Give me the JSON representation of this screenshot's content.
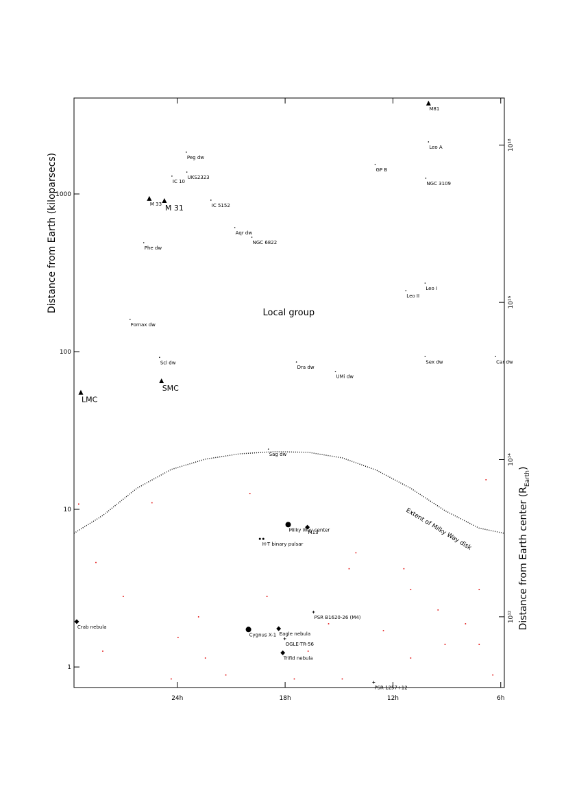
{
  "chart_data": {
    "type": "scatter",
    "y_label": "Distance from Earth (kiloparsecs)",
    "y2_label": {
      "text": "Distance from Earth center (R",
      "sub": "Earth",
      "end": ")"
    },
    "xlim": [
      29.75,
      5.8
    ],
    "xticks": [
      {
        "value": 24,
        "label": "24h"
      },
      {
        "value": 18,
        "label": "18h"
      },
      {
        "value": 12,
        "label": "12h"
      },
      {
        "value": 6,
        "label": "6h"
      }
    ],
    "ylim": [
      0.741,
      4060
    ],
    "yticks": [
      1,
      10,
      100,
      1000
    ],
    "log_y": true,
    "y2lim": [
      126000000000.0,
      3.98e+18
    ],
    "y2ticks": [
      {
        "value": 1000000000000.0,
        "label": "10¹²"
      },
      {
        "value": 100000000000000.0,
        "label": "10¹⁴"
      },
      {
        "value": 1e+16,
        "label": "10¹⁶"
      },
      {
        "value": 1e+18,
        "label": "10¹⁸"
      }
    ],
    "log_y2": true,
    "annotations": [
      {
        "text": "Local group",
        "x": 17.8,
        "y": 170
      }
    ],
    "points": [
      {
        "label": "M81",
        "x": 10.02,
        "y": 3750,
        "marker": "triangle",
        "size": "small"
      },
      {
        "label": "M 33",
        "x": 25.56,
        "y": 933,
        "marker": "triangle",
        "size": "small"
      },
      {
        "label": "M 31",
        "x": 24.72,
        "y": 905,
        "marker": "triangle",
        "size": "large"
      },
      {
        "label": "SMC",
        "x": 24.88,
        "y": 65,
        "marker": "triangle",
        "size": "large"
      },
      {
        "label": "LMC",
        "x": 29.37,
        "y": 55,
        "marker": "triangle",
        "size": "large"
      },
      {
        "label": "Peg dw",
        "x": 23.5,
        "y": 1842,
        "marker": "dot",
        "size": "small"
      },
      {
        "label": "Leo A",
        "x": 10.02,
        "y": 2140,
        "marker": "dot",
        "size": "small"
      },
      {
        "label": "GP B",
        "x": 12.99,
        "y": 1538,
        "marker": "dot",
        "size": "small"
      },
      {
        "label": "UKS2323",
        "x": 23.47,
        "y": 1377,
        "marker": "dot",
        "size": "small"
      },
      {
        "label": "IC 10",
        "x": 24.3,
        "y": 1298,
        "marker": "dot",
        "size": "small"
      },
      {
        "label": "NGC 3109",
        "x": 10.17,
        "y": 1259,
        "marker": "dot",
        "size": "small"
      },
      {
        "label": "IC 5152",
        "x": 22.13,
        "y": 914,
        "marker": "dot",
        "size": "small"
      },
      {
        "label": "Aqr dw",
        "x": 20.8,
        "y": 612,
        "marker": "dot",
        "size": "small"
      },
      {
        "label": "NGC 6822",
        "x": 19.85,
        "y": 532,
        "marker": "dot",
        "size": "small"
      },
      {
        "label": "Phe dw",
        "x": 25.87,
        "y": 491,
        "marker": "dot",
        "size": "small"
      },
      {
        "label": "Leo I",
        "x": 10.21,
        "y": 272,
        "marker": "dot",
        "size": "small"
      },
      {
        "label": "Leo II",
        "x": 11.28,
        "y": 244,
        "marker": "dot",
        "size": "small"
      },
      {
        "label": "Fornax dw",
        "x": 26.63,
        "y": 160,
        "marker": "dot",
        "size": "small"
      },
      {
        "label": "Scl dw",
        "x": 24.99,
        "y": 92,
        "marker": "dot",
        "size": "small"
      },
      {
        "label": "Dra dw",
        "x": 17.37,
        "y": 86,
        "marker": "dot",
        "size": "small"
      },
      {
        "label": "Sex dw",
        "x": 10.21,
        "y": 93,
        "marker": "dot",
        "size": "small"
      },
      {
        "label": "Car dw",
        "x": 6.29,
        "y": 93,
        "marker": "dot",
        "size": "small"
      },
      {
        "label": "UMi dw",
        "x": 15.2,
        "y": 75,
        "marker": "dot",
        "size": "small"
      },
      {
        "label": "Sag dw",
        "x": 18.93,
        "y": 24.1,
        "marker": "dot",
        "size": "small"
      },
      {
        "label": "Milky Way center",
        "x": 17.83,
        "y": 8.0,
        "marker": "circle",
        "size": "small"
      },
      {
        "label": "M13",
        "x": 16.76,
        "y": 7.7,
        "marker": "diamond",
        "size": "small"
      },
      {
        "label": "H-T binary pulsar",
        "x": 19.31,
        "y": 6.5,
        "marker": "pair",
        "size": "small"
      },
      {
        "label": "PSR B1620-26 (M4)",
        "x": 16.42,
        "y": 2.23,
        "marker": "plus",
        "size": "small"
      },
      {
        "label": "Crab nebula",
        "x": 29.6,
        "y": 1.94,
        "marker": "diamond",
        "size": "small"
      },
      {
        "label": "Cygnus X-1",
        "x": 20.04,
        "y": 1.73,
        "marker": "circle",
        "size": "small"
      },
      {
        "label": "Eagle nebula",
        "x": 18.36,
        "y": 1.75,
        "marker": "diamond",
        "size": "small"
      },
      {
        "label": "OGLE-TR-56",
        "x": 18.02,
        "y": 1.51,
        "marker": "plus",
        "size": "small"
      },
      {
        "label": "Trifid nebula",
        "x": 18.13,
        "y": 1.23,
        "marker": "diamond",
        "size": "small"
      },
      {
        "label": "PSR 1257+12",
        "x": 13.07,
        "y": 0.8,
        "marker": "plus",
        "size": "small"
      }
    ],
    "disk_extent": {
      "label": "Extent of Milky Way disk",
      "x": [
        29.75,
        28.15,
        26.25,
        24.34,
        22.44,
        20.53,
        18.63,
        16.72,
        14.82,
        12.91,
        11.01,
        9.1,
        7.2,
        5.83
      ],
      "values": [
        7.05,
        9.14,
        13.6,
        17.9,
        20.8,
        22.5,
        23.2,
        23.0,
        21.2,
        17.7,
        13.6,
        9.8,
        7.6,
        7.05
      ]
    },
    "background_stars": {
      "color": "#e00000",
      "x": [
        29.49,
        19.96,
        25.41,
        14.06,
        11.39,
        9.49,
        7.2,
        27.01,
        23.96,
        22.44,
        16.72,
        14.82,
        11.01,
        9.1,
        6.44,
        28.15,
        21.3,
        15.58,
        12.53,
        7.96,
        6.82,
        24.34,
        19.01,
        28.53,
        17.49,
        14.44,
        22.82,
        11.01,
        7.2
      ],
      "values": [
        10.8,
        12.6,
        11.0,
        5.3,
        4.2,
        2.3,
        3.1,
        2.8,
        1.54,
        1.14,
        1.26,
        0.84,
        1.14,
        1.39,
        0.89,
        1.26,
        0.89,
        1.88,
        1.7,
        1.88,
        15.4,
        0.84,
        2.8,
        4.6,
        0.84,
        4.2,
        2.08,
        3.1,
        1.39
      ]
    }
  }
}
